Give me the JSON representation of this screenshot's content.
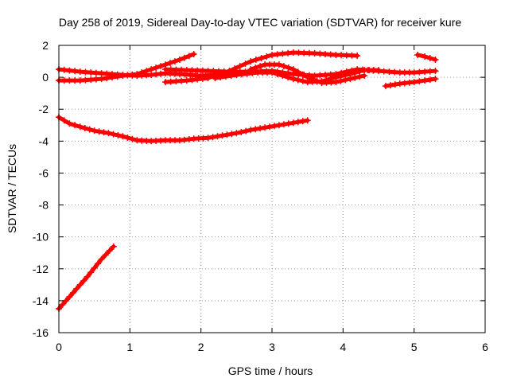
{
  "chart_data": {
    "type": "scatter",
    "title": "Day 258 of 2019, Sidereal Day-to-day VTEC variation (SDTVAR) for receiver kure",
    "xlabel": "GPS time / hours",
    "ylabel": "SDTVAR / TECUs",
    "xlim": [
      0,
      6
    ],
    "ylim": [
      -16,
      2
    ],
    "xticks": [
      "0",
      "1",
      "2",
      "3",
      "4",
      "5",
      "6"
    ],
    "yticks": [
      "2",
      "0",
      "-2",
      "-4",
      "-6",
      "-8",
      "-10",
      "-12",
      "-14",
      "-16"
    ],
    "grid": true,
    "legend": "none",
    "marker": "plus",
    "color": "#ff0000",
    "series": [
      {
        "points": [
          [
            0.0,
            -14.5
          ],
          [
            0.2,
            -13.5
          ],
          [
            0.4,
            -12.5
          ],
          [
            0.6,
            -11.4
          ],
          [
            0.77,
            -10.6
          ]
        ]
      },
      {
        "points": [
          [
            0.0,
            -2.5
          ],
          [
            0.15,
            -2.9
          ],
          [
            0.3,
            -3.1
          ],
          [
            0.5,
            -3.35
          ],
          [
            0.7,
            -3.5
          ],
          [
            0.9,
            -3.7
          ],
          [
            1.1,
            -3.95
          ],
          [
            1.3,
            -4.0
          ],
          [
            1.5,
            -3.95
          ],
          [
            1.7,
            -3.95
          ],
          [
            1.9,
            -3.85
          ],
          [
            2.1,
            -3.8
          ],
          [
            2.3,
            -3.65
          ],
          [
            2.5,
            -3.5
          ],
          [
            2.7,
            -3.3
          ],
          [
            2.9,
            -3.15
          ],
          [
            3.1,
            -3.0
          ],
          [
            3.3,
            -2.85
          ],
          [
            3.5,
            -2.7
          ]
        ]
      },
      {
        "points": [
          [
            0.0,
            0.5
          ],
          [
            0.3,
            0.35
          ],
          [
            0.6,
            0.25
          ],
          [
            0.9,
            0.15
          ],
          [
            1.1,
            0.1
          ],
          [
            1.3,
            0.15
          ],
          [
            1.5,
            0.25
          ],
          [
            1.7,
            0.2
          ],
          [
            2.0,
            0.1
          ],
          [
            2.2,
            0.15
          ],
          [
            2.4,
            0.2
          ]
        ]
      },
      {
        "points": [
          [
            0.0,
            -0.2
          ],
          [
            0.3,
            -0.2
          ],
          [
            0.6,
            -0.1
          ],
          [
            0.9,
            0.1
          ],
          [
            1.1,
            0.2
          ],
          [
            1.3,
            0.5
          ],
          [
            1.5,
            0.8
          ],
          [
            1.7,
            1.1
          ],
          [
            1.9,
            1.45
          ]
        ]
      },
      {
        "points": [
          [
            1.5,
            -0.3
          ],
          [
            1.8,
            -0.2
          ],
          [
            2.1,
            -0.05
          ],
          [
            2.4,
            0.4
          ],
          [
            2.7,
            1.0
          ],
          [
            3.0,
            1.4
          ],
          [
            3.3,
            1.55
          ],
          [
            3.6,
            1.5
          ],
          [
            3.9,
            1.4
          ],
          [
            4.2,
            1.35
          ]
        ]
      },
      {
        "points": [
          [
            1.5,
            0.5
          ],
          [
            1.8,
            0.45
          ],
          [
            2.1,
            0.4
          ],
          [
            2.4,
            0.35
          ],
          [
            2.7,
            0.35
          ],
          [
            3.0,
            0.4
          ],
          [
            3.3,
            0.2
          ],
          [
            3.6,
            0.1
          ],
          [
            3.9,
            0.2
          ],
          [
            4.2,
            0.5
          ],
          [
            4.5,
            0.4
          ],
          [
            4.8,
            0.3
          ],
          [
            5.0,
            0.3
          ],
          [
            5.3,
            0.4
          ]
        ]
      },
      {
        "points": [
          [
            2.2,
            -0.05
          ],
          [
            2.5,
            0.15
          ],
          [
            2.8,
            0.3
          ],
          [
            3.0,
            0.3
          ],
          [
            3.3,
            -0.1
          ],
          [
            3.5,
            -0.3
          ],
          [
            3.7,
            -0.25
          ],
          [
            3.9,
            0.0
          ],
          [
            4.1,
            0.2
          ],
          [
            4.3,
            0.45
          ],
          [
            4.5,
            0.45
          ]
        ]
      },
      {
        "points": [
          [
            2.7,
            0.5
          ],
          [
            2.9,
            0.8
          ],
          [
            3.1,
            0.8
          ],
          [
            3.3,
            0.5
          ],
          [
            3.5,
            0.0
          ],
          [
            3.7,
            -0.35
          ],
          [
            3.9,
            -0.3
          ],
          [
            4.1,
            -0.1
          ],
          [
            4.3,
            0.1
          ]
        ]
      },
      {
        "points": [
          [
            4.6,
            -0.55
          ],
          [
            4.8,
            -0.4
          ],
          [
            5.0,
            -0.3
          ],
          [
            5.15,
            -0.2
          ],
          [
            5.3,
            -0.1
          ]
        ]
      },
      {
        "points": [
          [
            5.05,
            1.4
          ],
          [
            5.15,
            1.3
          ],
          [
            5.3,
            1.1
          ]
        ]
      }
    ]
  }
}
